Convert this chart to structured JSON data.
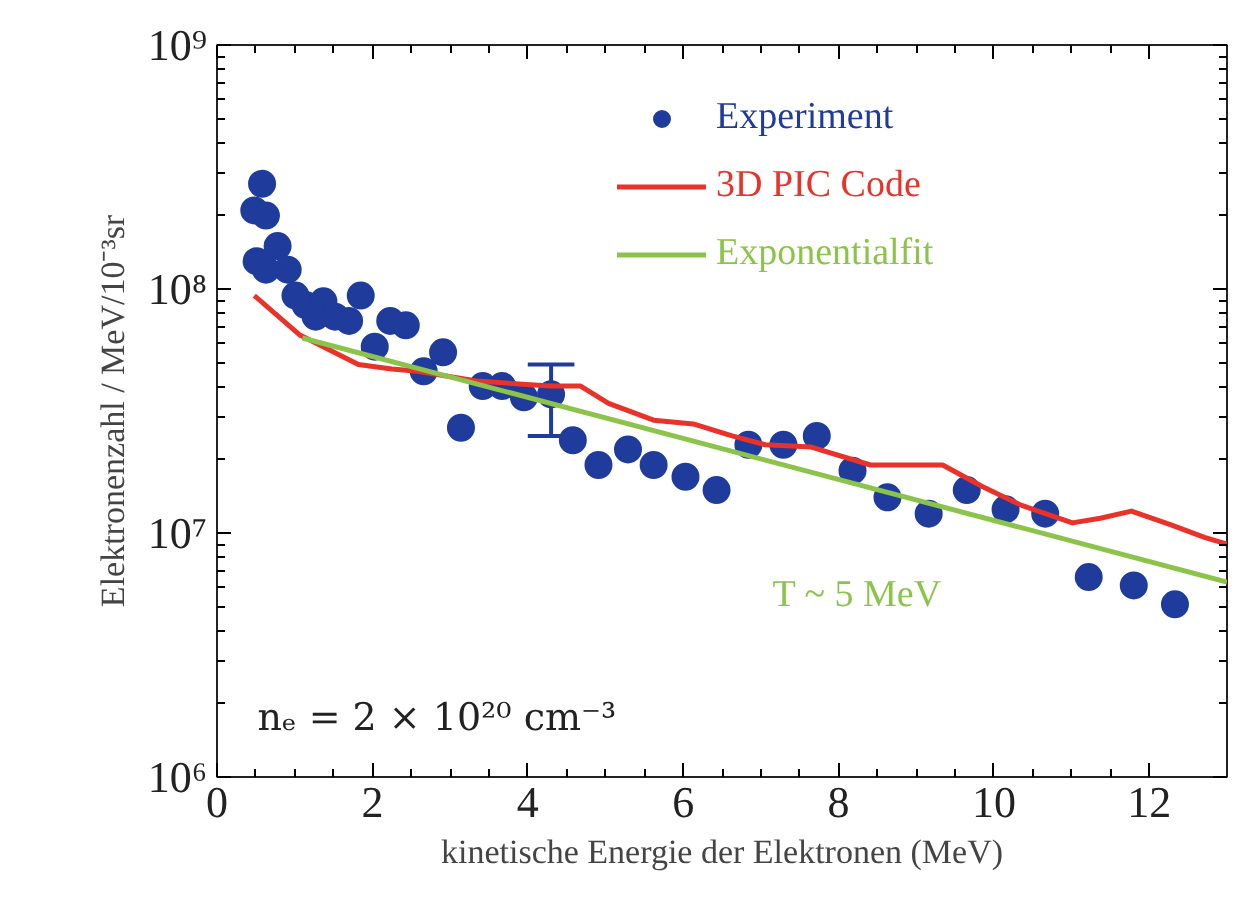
{
  "chart_data": {
    "type": "scatter",
    "xlabel": "kinetische Energie der Elektronen (MeV)",
    "ylabel": "Elektronenzahl / MeV/10⁻³sr",
    "log": "y",
    "grid": false,
    "legend": "top right",
    "marker": "circle",
    "xlim": [
      0,
      13
    ],
    "xticks": [
      0,
      2,
      4,
      6,
      8,
      10,
      12
    ],
    "ylim": [
      1000000,
      1000000000
    ],
    "yticks": [
      {
        "value": 1000000,
        "label": "10⁶"
      },
      {
        "value": 10000000,
        "label": "10⁷"
      },
      {
        "value": 100000000,
        "label": "10⁸"
      },
      {
        "value": 1000000000,
        "label": "10⁹"
      }
    ],
    "annotations": [
      "T ~ 5 MeV",
      "nₑ = 2 × 10²⁰ cm⁻³"
    ],
    "series": [
      {
        "name": "Experiment",
        "color": "#1f3c9c",
        "x": [
          0.58,
          0.48,
          0.63,
          0.51,
          0.78,
          0.63,
          0.91,
          1.01,
          1.14,
          1.37,
          1.27,
          1.52,
          1.7,
          1.85,
          2.03,
          2.23,
          2.43,
          2.66,
          2.91,
          3.14,
          3.42,
          3.67,
          3.95,
          4.3,
          4.58,
          4.91,
          5.29,
          5.62,
          6.03,
          6.43,
          6.84,
          7.29,
          7.72,
          8.18,
          8.63,
          9.16,
          9.65,
          10.15,
          10.66,
          11.22,
          11.8,
          12.33
        ],
        "values": [
          270000000,
          210000000,
          200000000,
          130000000,
          150000000,
          120000000,
          120000000,
          94000000,
          86000000,
          89000000,
          77000000,
          77000000,
          74000000,
          94000000,
          58000000,
          74000000,
          71000000,
          46000000,
          55000000,
          27000000,
          40000000,
          40000000,
          36000000,
          37000000,
          24000000,
          19000000,
          22000000,
          19000000,
          17000000,
          15000000,
          23000000,
          23000000,
          25000000,
          18000000,
          14000000,
          12000000,
          15000000,
          12500000,
          12000000,
          6600000,
          6100000,
          5100000
        ],
        "errors": [
          null,
          null,
          null,
          null,
          null,
          null,
          null,
          null,
          null,
          null,
          null,
          null,
          null,
          null,
          null,
          null,
          null,
          null,
          null,
          null,
          null,
          null,
          null,
          [
            25000000,
            49000000
          ],
          null,
          null,
          null,
          null,
          null,
          null,
          null,
          null,
          null,
          null,
          null,
          null,
          null,
          null,
          null,
          null,
          null,
          null
        ]
      },
      {
        "name": "3D PIC Code",
        "type": "line",
        "marker": "none",
        "color": "#e8322a",
        "x": [
          0.48,
          1.06,
          1.82,
          2.25,
          2.58,
          3.34,
          4.28,
          4.68,
          5.04,
          5.62,
          6.13,
          6.63,
          7.06,
          7.65,
          8.41,
          9.34,
          9.85,
          10.35,
          11.01,
          11.37,
          11.77,
          12.28,
          12.71,
          13.0
        ],
        "values": [
          94000000,
          65000000,
          49000000,
          47000000,
          46000000,
          42000000,
          40000000,
          40000000,
          34000000,
          29000000,
          28000000,
          25000000,
          23000000,
          22500000,
          19000000,
          19000000,
          15500000,
          13000000,
          11000000,
          11500000,
          12300000,
          10800000,
          9600000,
          9000000
        ]
      },
      {
        "name": "Exponentialfit",
        "type": "line",
        "marker": "none",
        "color": "#8cc34a",
        "x": [
          1.1,
          13.0
        ],
        "values": [
          63000000,
          6300000
        ]
      }
    ]
  }
}
